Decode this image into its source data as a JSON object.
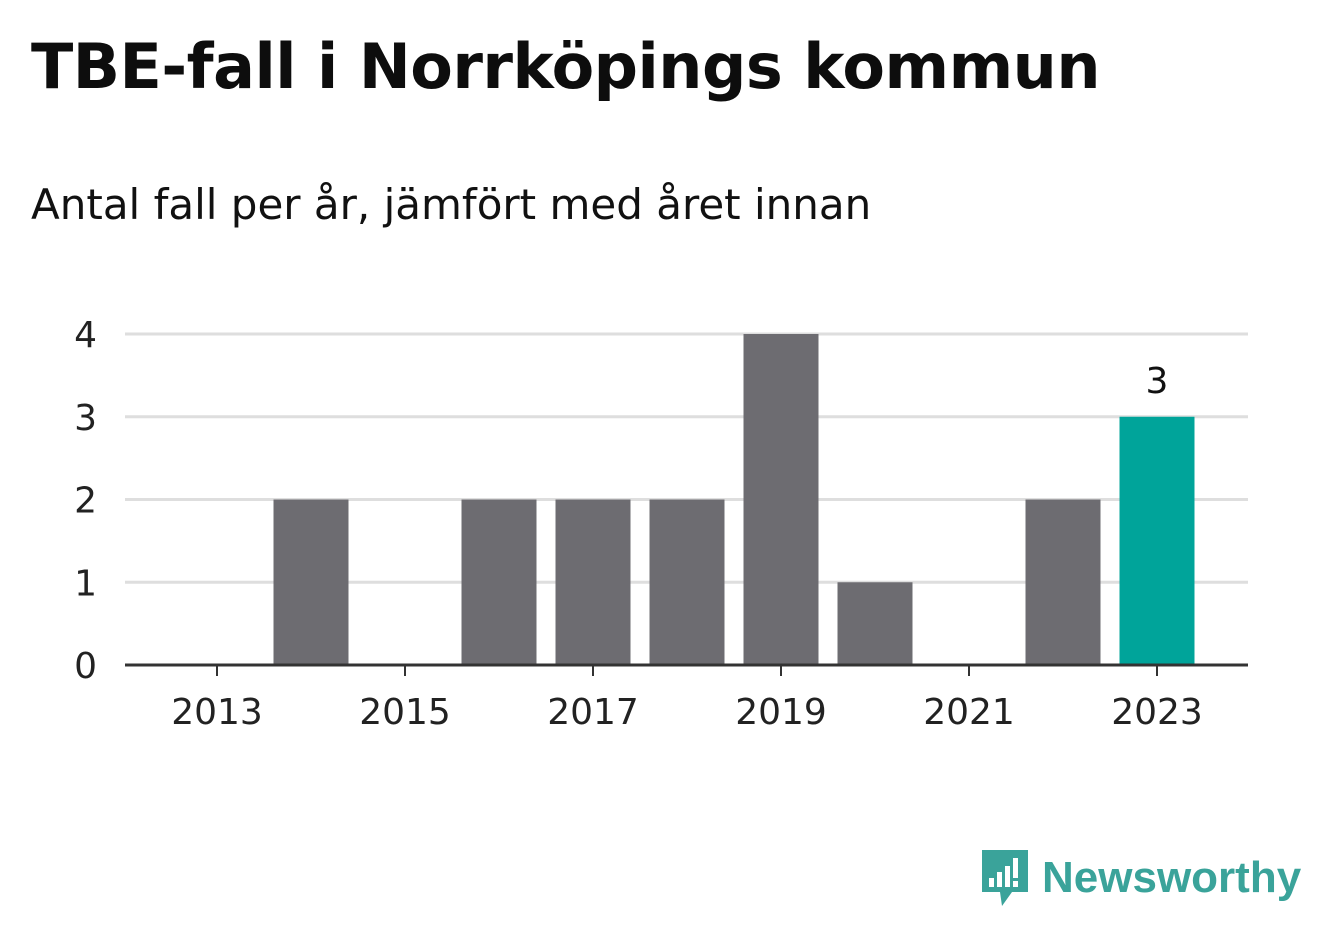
{
  "title": "TBE-fall i Norrköpings kommun",
  "subtitle": "Antal fall per år, jämfört med året innan",
  "brand": {
    "name": "Newsworthy",
    "icon": "newsworthy-logo-icon",
    "color": "#3aa39a"
  },
  "colors": {
    "bar": "#6d6c71",
    "highlight": "#00a49a",
    "grid": "#dedede",
    "axis": "#333333"
  },
  "chart_data": {
    "type": "bar",
    "categories": [
      "2013",
      "2014",
      "2015",
      "2016",
      "2017",
      "2018",
      "2019",
      "2020",
      "2021",
      "2022",
      "2023"
    ],
    "values": [
      0,
      2,
      0,
      2,
      2,
      2,
      4,
      1,
      0,
      2,
      3
    ],
    "x_tick_labels": [
      "2013",
      "2015",
      "2017",
      "2019",
      "2021",
      "2023"
    ],
    "y_ticks": [
      0,
      1,
      2,
      3,
      4
    ],
    "ylim": [
      0,
      4
    ],
    "highlight_index": 10,
    "data_labels": [
      {
        "index": 10,
        "text": "3"
      }
    ],
    "grid": true,
    "legend": false
  }
}
